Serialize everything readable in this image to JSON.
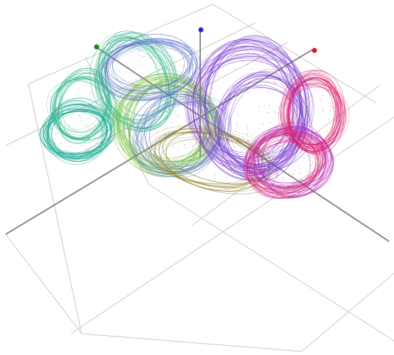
{
  "scene": {
    "background": "#ffffff",
    "grid_color": "#c8c8c8",
    "axis_line_color": "#8a8a8a",
    "axis_markers": [
      {
        "name": "x-axis-marker",
        "color": "#e01010"
      },
      {
        "name": "y-axis-marker",
        "color": "#118811"
      },
      {
        "name": "z-axis-marker",
        "color": "#2222dd"
      }
    ],
    "attractor_palette": [
      "#1aa890",
      "#2eb58a",
      "#78c03c",
      "#8a7a1a",
      "#5a72c8",
      "#7a3ad0",
      "#b02cb8",
      "#d81e6e"
    ]
  }
}
